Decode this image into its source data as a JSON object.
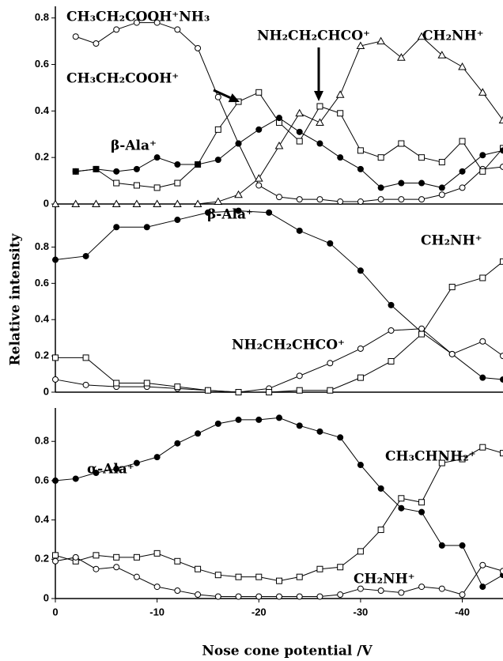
{
  "chart_data": [
    {
      "type": "line",
      "x": [
        0,
        -2,
        -4,
        -6,
        -8,
        -10,
        -12,
        -14,
        -16,
        -18,
        -20,
        -22,
        -24,
        -26,
        -28,
        -30,
        -32,
        -34,
        -36,
        -38,
        -40,
        -42,
        -44
      ],
      "xlim": [
        0,
        -44
      ],
      "ylim": [
        0,
        0.85
      ],
      "yticks": [
        0,
        0.2,
        0.4,
        0.6,
        0.8
      ],
      "series": [
        {
          "marker": "open-circle",
          "color": "#000000",
          "values": [
            null,
            0.72,
            0.69,
            0.75,
            0.78,
            0.78,
            0.75,
            0.67,
            0.46,
            0.26,
            0.08,
            0.03,
            0.02,
            0.02,
            0.01,
            0.01,
            0.02,
            0.02,
            0.02,
            0.04,
            0.07,
            0.15,
            0.16
          ]
        },
        {
          "marker": "open-square",
          "color": "#000000",
          "values": [
            null,
            0.14,
            0.15,
            0.09,
            0.08,
            0.07,
            0.09,
            0.17,
            0.32,
            0.44,
            0.48,
            0.35,
            0.27,
            0.42,
            0.39,
            0.23,
            0.2,
            0.26,
            0.2,
            0.18,
            0.27,
            0.14,
            0.24
          ]
        },
        {
          "marker": "filled-circle",
          "color": "#000000",
          "values": [
            null,
            0.14,
            0.15,
            0.14,
            0.15,
            0.2,
            0.17,
            0.17,
            0.19,
            0.26,
            0.32,
            0.37,
            0.31,
            0.26,
            0.2,
            0.15,
            0.07,
            0.09,
            0.09,
            0.07,
            0.14,
            0.21,
            0.23
          ]
        },
        {
          "marker": "open-triangle",
          "color": "#000000",
          "values": [
            0,
            0,
            0,
            0,
            0,
            0,
            0,
            0,
            0.01,
            0.04,
            0.11,
            0.25,
            0.39,
            0.35,
            0.47,
            0.68,
            0.7,
            0.63,
            0.72,
            0.64,
            0.59,
            0.48,
            0.36
          ]
        }
      ],
      "annotations": [
        "CH₃CH₂COOH⁺NH₃",
        "NH₂CH₂CHCO⁺",
        "CH₂NH⁺",
        "CH₃CH₂COOH⁺",
        "β-Ala⁺"
      ]
    },
    {
      "type": "line",
      "x": [
        0,
        -3,
        -6,
        -9,
        -12,
        -15,
        -18,
        -21,
        -24,
        -27,
        -30,
        -33,
        -36,
        -39,
        -42,
        -44
      ],
      "xlim": [
        0,
        -44
      ],
      "ylim": [
        0,
        1.02
      ],
      "yticks": [
        0,
        0.2,
        0.4,
        0.6,
        0.8
      ],
      "ylabel": "Relative intensity",
      "series": [
        {
          "marker": "filled-circle",
          "color": "#000000",
          "values": [
            0.73,
            0.75,
            0.91,
            0.91,
            0.95,
            0.99,
            1.0,
            0.99,
            0.89,
            0.82,
            0.67,
            0.48,
            0.33,
            0.21,
            0.08,
            0.07
          ]
        },
        {
          "marker": "open-circle",
          "color": "#000000",
          "values": [
            0.07,
            0.04,
            0.03,
            0.03,
            0.02,
            0.01,
            0,
            0.02,
            0.09,
            0.16,
            0.24,
            0.34,
            0.35,
            0.21,
            0.28,
            0.2
          ]
        },
        {
          "marker": "open-square",
          "color": "#000000",
          "values": [
            0.19,
            0.19,
            0.05,
            0.05,
            0.03,
            0.01,
            0,
            0,
            0.01,
            0.01,
            0.08,
            0.17,
            0.32,
            0.58,
            0.63,
            0.72
          ]
        }
      ],
      "annotations": [
        "β-Ala⁺",
        "CH₂NH⁺",
        "NH₂CH₂CHCO⁺"
      ]
    },
    {
      "type": "line",
      "x": [
        0,
        -2,
        -4,
        -6,
        -8,
        -10,
        -12,
        -14,
        -16,
        -18,
        -20,
        -22,
        -24,
        -26,
        -28,
        -30,
        -32,
        -34,
        -36,
        -38,
        -40,
        -42,
        -44
      ],
      "xlim": [
        0,
        -44
      ],
      "ylim": [
        0,
        0.97
      ],
      "yticks": [
        0,
        0.2,
        0.4,
        0.6,
        0.8
      ],
      "xticks": [
        0,
        -10,
        -20,
        -30,
        -40
      ],
      "xlabel": "Nose cone potential /V",
      "series": [
        {
          "marker": "filled-circle",
          "color": "#000000",
          "values": [
            0.6,
            0.61,
            0.64,
            0.66,
            0.69,
            0.72,
            0.79,
            0.84,
            0.89,
            0.91,
            0.91,
            0.92,
            0.88,
            0.85,
            0.82,
            0.68,
            0.56,
            0.46,
            0.44,
            0.27,
            0.27,
            0.06,
            0.12
          ]
        },
        {
          "marker": "open-square",
          "color": "#000000",
          "values": [
            0.22,
            0.19,
            0.22,
            0.21,
            0.21,
            0.23,
            0.19,
            0.15,
            0.12,
            0.11,
            0.11,
            0.09,
            0.11,
            0.15,
            0.16,
            0.24,
            0.35,
            0.51,
            0.49,
            0.69,
            0.71,
            0.77,
            0.74
          ]
        },
        {
          "marker": "open-circle",
          "color": "#000000",
          "values": [
            0.19,
            0.21,
            0.15,
            0.16,
            0.11,
            0.06,
            0.04,
            0.02,
            0.01,
            0.01,
            0.01,
            0.01,
            0.01,
            0.01,
            0.02,
            0.05,
            0.04,
            0.03,
            0.06,
            0.05,
            0.02,
            0.17,
            0.14
          ]
        }
      ],
      "annotations": [
        "α-Ala⁺",
        "CH₃CHNH₂⁺",
        "CH₂NH⁺"
      ]
    }
  ]
}
